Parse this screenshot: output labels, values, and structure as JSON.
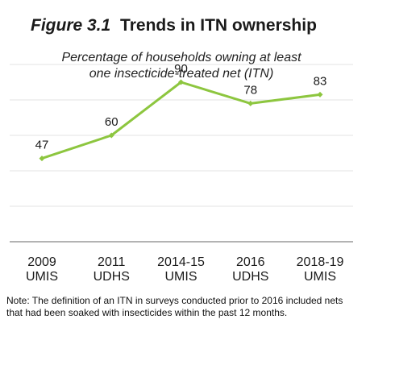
{
  "figure": {
    "label": "Figure 3.1",
    "title": "Trends in ITN ownership",
    "subtitle_lines": [
      "Percentage of households owning at least",
      "one insecticide-treated net (ITN)"
    ],
    "note": "Note: The definition of an ITN in surveys conducted prior to 2016 included nets that had been soaked with insecticides within the past 12 months."
  },
  "chart_data": {
    "type": "line",
    "title": "Trends in ITN ownership",
    "subtitle": "Percentage of households owning at least one insecticide-treated net (ITN)",
    "categories": [
      [
        "2009",
        "UMIS"
      ],
      [
        "2011",
        "UDHS"
      ],
      [
        "2014-15",
        "UMIS"
      ],
      [
        "2016",
        "UDHS"
      ],
      [
        "2018-19",
        "UMIS"
      ]
    ],
    "series": [
      {
        "values": [
          47,
          60,
          90,
          78,
          83
        ],
        "color": "#8dc63f"
      }
    ],
    "data_labels": [
      "47",
      "60",
      "90",
      "78",
      "83"
    ],
    "ylim": [
      0,
      100
    ],
    "grid": true,
    "gridline_color": "#e3e3e3",
    "axis_color": "#9a9a9a",
    "legend": "none"
  }
}
